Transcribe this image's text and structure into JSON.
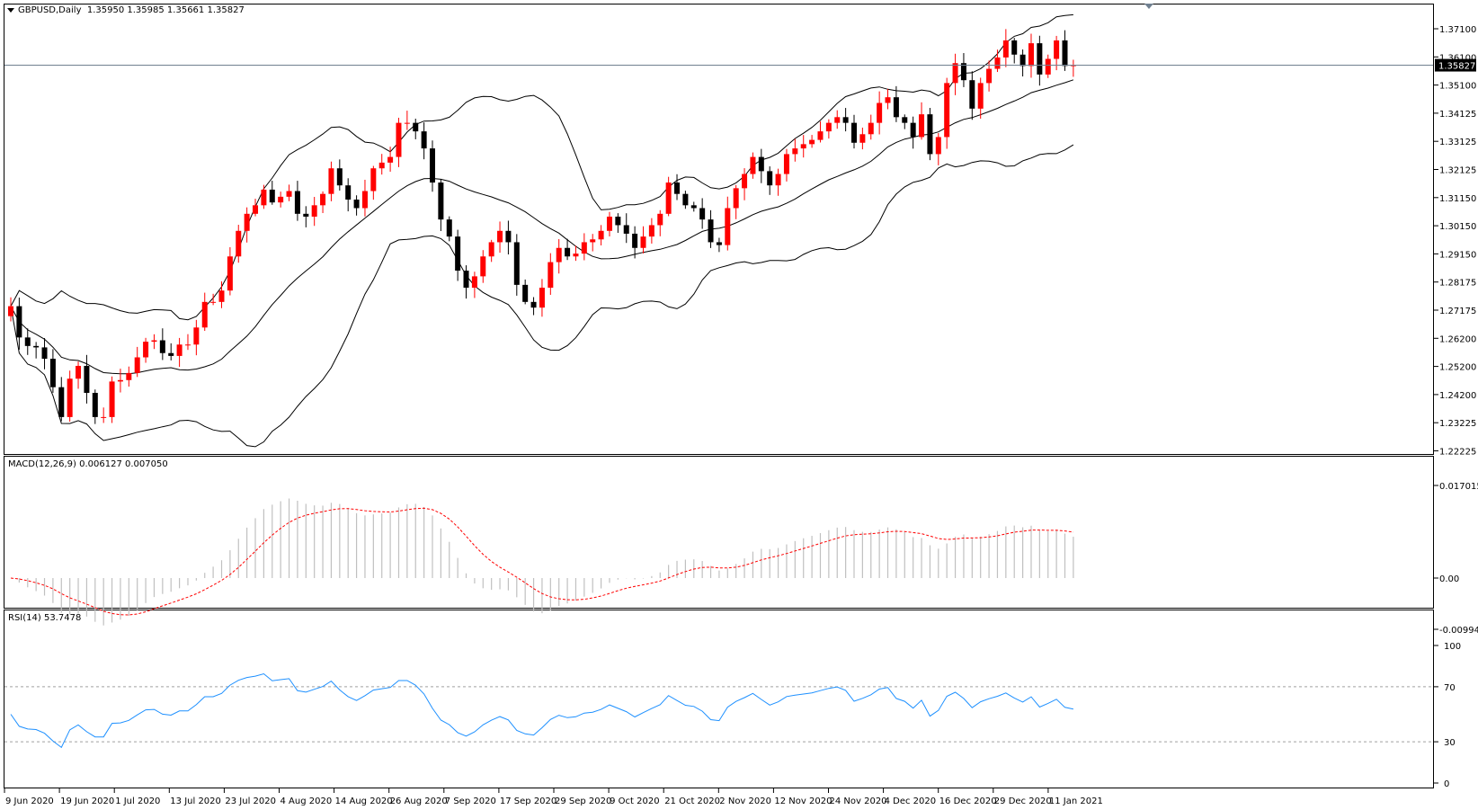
{
  "symbol_header": {
    "symbol": "GBPUSD,Daily",
    "ohlc": "1.35950 1.35985 1.35661 1.35827"
  },
  "macd_header": "MACD(12,26,9) 0.006127 0.007050",
  "rsi_header": "RSI(14) 53.7478",
  "colors": {
    "bull": "#ff0000",
    "bear": "#000000",
    "macd_signal": "#ff0000",
    "macd_hist": "#c0c0c0",
    "rsi_line": "#1e90ff",
    "bid_line": "#708090"
  },
  "chart_data": [
    {
      "type": "candlestick",
      "title": "GBPUSD,Daily",
      "y_ticks": [
        "1.37100",
        "1.36100",
        "1.35100",
        "1.34125",
        "1.33125",
        "1.32125",
        "1.31150",
        "1.30150",
        "1.29150",
        "1.28175",
        "1.27175",
        "1.26200",
        "1.25200",
        "1.24200",
        "1.23225",
        "1.22225"
      ],
      "ylim": [
        1.2215,
        1.379
      ],
      "current_price_label": "1.35827",
      "x_ticks": [
        "9 Jun 2020",
        "19 Jun 2020",
        "1 Jul 2020",
        "13 Jul 2020",
        "23 Jul 2020",
        "4 Aug 2020",
        "14 Aug 2020",
        "26 Aug 2020",
        "7 Sep 2020",
        "17 Sep 2020",
        "29 Sep 2020",
        "9 Oct 2020",
        "21 Oct 2020",
        "2 Nov 2020",
        "12 Nov 2020",
        "24 Nov 2020",
        "4 Dec 2020",
        "16 Dec 2020",
        "29 Dec 2020",
        "11 Jan 2021"
      ],
      "close": [
        1.2735,
        1.2625,
        1.2595,
        1.259,
        1.255,
        1.245,
        1.2345,
        1.248,
        1.2525,
        1.243,
        1.2345,
        1.2345,
        1.247,
        1.2475,
        1.25,
        1.2555,
        1.261,
        1.2615,
        1.257,
        1.256,
        1.26,
        1.26,
        1.266,
        1.275,
        1.275,
        1.279,
        1.291,
        1.3,
        1.306,
        1.309,
        1.3145,
        1.31,
        1.312,
        1.314,
        1.306,
        1.305,
        1.309,
        1.313,
        1.322,
        1.316,
        1.311,
        1.308,
        1.314,
        1.322,
        1.324,
        1.326,
        1.338,
        1.338,
        1.335,
        1.329,
        1.317,
        1.304,
        1.298,
        1.286,
        1.28,
        1.284,
        1.291,
        1.296,
        1.3,
        1.296,
        1.281,
        1.275,
        1.273,
        1.28,
        1.289,
        1.294,
        1.291,
        1.292,
        1.296,
        1.297,
        1.3,
        1.305,
        1.302,
        1.299,
        1.294,
        1.298,
        1.302,
        1.306,
        1.317,
        1.313,
        1.309,
        1.308,
        1.304,
        1.296,
        1.295,
        1.308,
        1.315,
        1.32,
        1.326,
        1.321,
        1.316,
        1.32,
        1.327,
        1.329,
        1.3305,
        1.332,
        1.335,
        1.338,
        1.34,
        1.338,
        1.331,
        1.334,
        1.338,
        1.345,
        1.347,
        1.34,
        1.338,
        1.333,
        1.341,
        1.327,
        1.333,
        1.352,
        1.359,
        1.353,
        1.343,
        1.352,
        1.357,
        1.361,
        1.367,
        1.362,
        1.358,
        1.366,
        1.355,
        1.3605,
        1.367,
        1.358,
        1.35827
      ],
      "bb_upper_range": [
        1.2915,
        1.3732
      ],
      "bb_lower_range": [
        1.2215,
        1.3402
      ]
    },
    {
      "type": "bar",
      "title": "MACD(12,26,9) 0.006127 0.007050",
      "series": [
        {
          "name": "MACD",
          "value": 0.006127
        },
        {
          "name": "Signal",
          "value": 0.00705
        }
      ],
      "y_ticks": [
        "0.017015",
        "0.00",
        "-0.009942"
      ],
      "ylim": [
        -0.009942,
        0.017015
      ]
    },
    {
      "type": "line",
      "title": "RSI(14) 53.7478",
      "series": [
        {
          "name": "RSI",
          "last": 53.7478
        }
      ],
      "y_ticks": [
        "100",
        "70",
        "30",
        "0"
      ],
      "ylim": [
        0,
        100
      ],
      "levels": [
        70,
        30
      ]
    }
  ]
}
